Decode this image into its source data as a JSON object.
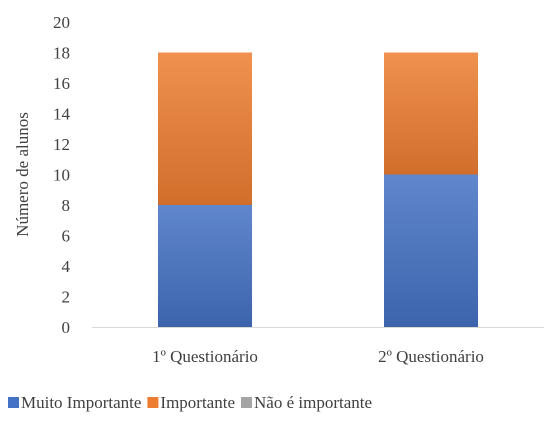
{
  "chart_data": {
    "type": "bar",
    "stacked": true,
    "title": "",
    "xlabel": "",
    "ylabel": "Número de alunos",
    "ylim": [
      0,
      20
    ],
    "yticks": [
      0,
      2,
      4,
      6,
      8,
      10,
      12,
      14,
      16,
      18,
      20
    ],
    "grid": false,
    "legend_position": "bottom",
    "categories": [
      "1º Questionário",
      "2º Questionário"
    ],
    "series": [
      {
        "name": "Muito Importante",
        "values": [
          8,
          10
        ],
        "color": "#4472C4"
      },
      {
        "name": "Importante",
        "values": [
          10,
          8
        ],
        "color": "#ED7D31"
      },
      {
        "name": "Não é importante",
        "values": [
          0,
          0
        ],
        "color": "#A5A5A5"
      }
    ]
  }
}
